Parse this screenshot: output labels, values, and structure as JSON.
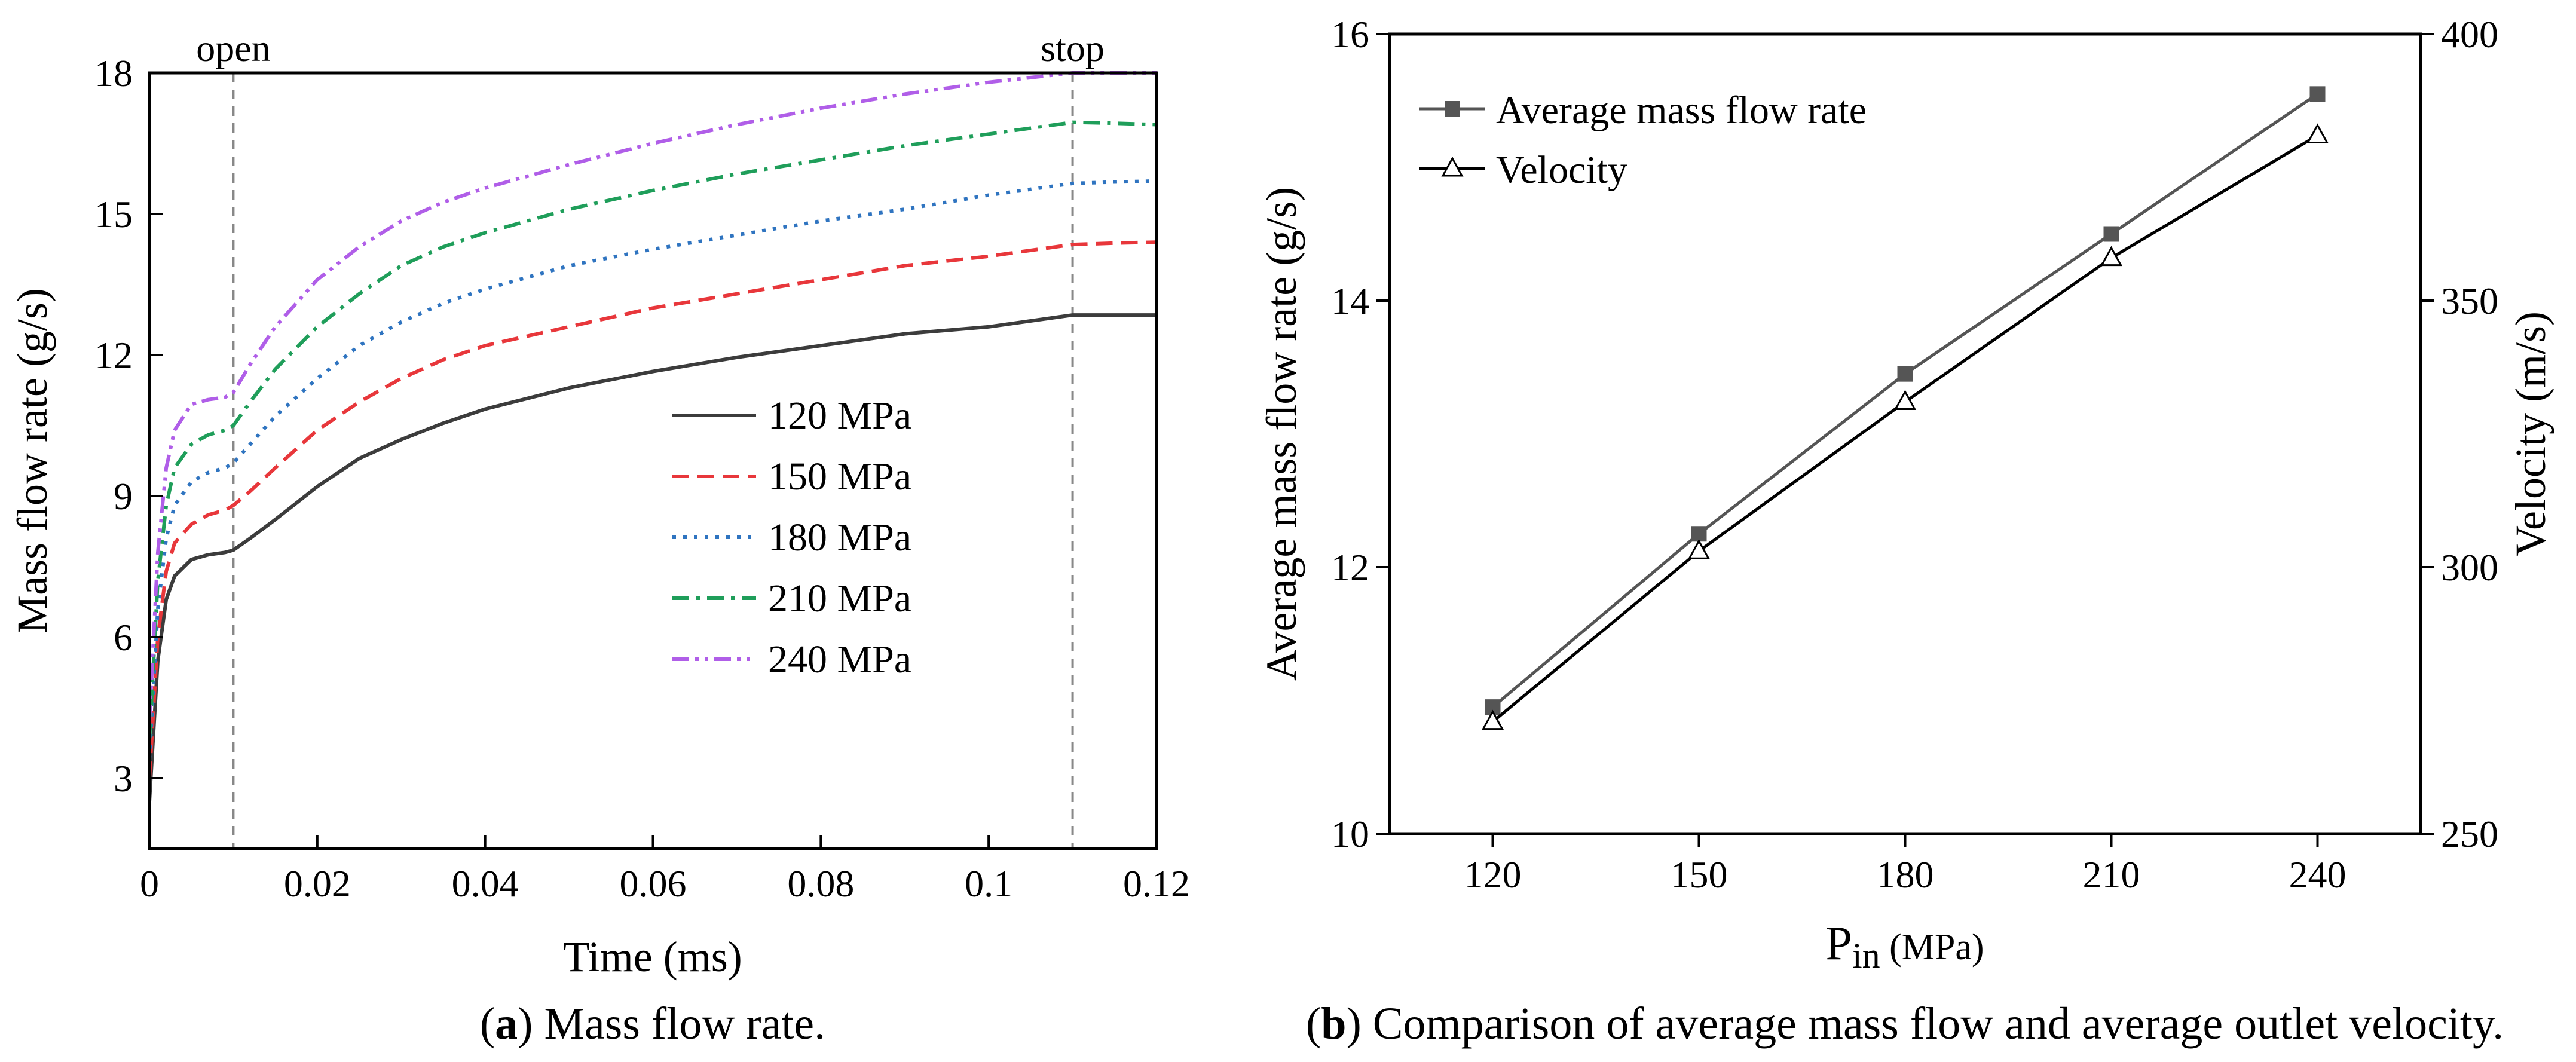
{
  "chart_data": [
    {
      "id": "a",
      "type": "line",
      "xlabel": "Time (ms)",
      "ylabel": "Mass flow rate (g/s)",
      "xlim": [
        0,
        0.12
      ],
      "ylim": [
        1.5,
        18
      ],
      "xticks": [
        0,
        0.02,
        0.04,
        0.06,
        0.08,
        0.1,
        0.12
      ],
      "xtick_labels": [
        "0",
        "0.02",
        "0.04",
        "0.06",
        "0.08",
        "0.1",
        "0.12"
      ],
      "yticks": [
        3,
        6,
        9,
        12,
        15,
        18
      ],
      "ytick_labels": [
        "3",
        "6",
        "9",
        "12",
        "15",
        "18"
      ],
      "annotations": [
        {
          "label": "open",
          "x": 0.01
        },
        {
          "label": "stop",
          "x": 0.11
        }
      ],
      "legend_position": "center-right",
      "x": [
        0,
        0.001,
        0.002,
        0.003,
        0.005,
        0.007,
        0.009,
        0.01,
        0.012,
        0.015,
        0.02,
        0.025,
        0.03,
        0.035,
        0.04,
        0.05,
        0.06,
        0.07,
        0.08,
        0.09,
        0.1,
        0.11,
        0.115,
        0.12
      ],
      "series": [
        {
          "name": "120 MPa",
          "color": "#3c3c3c",
          "dash": "solid",
          "values": [
            2.5,
            5.5,
            6.8,
            7.3,
            7.65,
            7.75,
            7.8,
            7.85,
            8.1,
            8.5,
            9.2,
            9.8,
            10.2,
            10.55,
            10.85,
            11.3,
            11.65,
            11.95,
            12.2,
            12.45,
            12.6,
            12.85,
            12.85,
            12.85
          ]
        },
        {
          "name": "150 MPa",
          "color": "#e8373b",
          "dash": "dashed",
          "values": [
            3.0,
            6.0,
            7.4,
            8.0,
            8.4,
            8.6,
            8.7,
            8.8,
            9.1,
            9.6,
            10.4,
            11.0,
            11.5,
            11.9,
            12.2,
            12.6,
            13.0,
            13.3,
            13.6,
            13.9,
            14.1,
            14.35,
            14.38,
            14.4
          ]
        },
        {
          "name": "180 MPa",
          "color": "#2f74c0",
          "dash": "dotted",
          "values": [
            3.4,
            6.6,
            8.1,
            8.8,
            9.3,
            9.5,
            9.6,
            9.7,
            10.1,
            10.7,
            11.5,
            12.2,
            12.7,
            13.1,
            13.4,
            13.9,
            14.25,
            14.55,
            14.85,
            15.1,
            15.4,
            15.65,
            15.68,
            15.7
          ]
        },
        {
          "name": "210 MPa",
          "color": "#1f9e5a",
          "dash": "dashdot",
          "values": [
            3.8,
            7.2,
            8.8,
            9.6,
            10.1,
            10.3,
            10.4,
            10.5,
            11.0,
            11.7,
            12.6,
            13.3,
            13.9,
            14.3,
            14.6,
            15.1,
            15.5,
            15.85,
            16.15,
            16.45,
            16.7,
            16.95,
            16.93,
            16.9
          ]
        },
        {
          "name": "240 MPa",
          "color": "#b05ee8",
          "dash": "dashdotdot",
          "values": [
            4.2,
            7.8,
            9.6,
            10.4,
            10.95,
            11.05,
            11.1,
            11.2,
            11.8,
            12.6,
            13.6,
            14.3,
            14.85,
            15.25,
            15.55,
            16.05,
            16.5,
            16.9,
            17.25,
            17.55,
            17.8,
            18.0,
            18.0,
            18.0
          ]
        }
      ],
      "caption_label": "a",
      "caption_text": " Mass flow rate."
    },
    {
      "id": "b",
      "type": "line",
      "xlabel_main": "P",
      "xlabel_sub": "in",
      "xlabel_unit": " (MPa)",
      "ylabel": "Average mass flow rate (g/s)",
      "y2label": "Velocity (m/s)",
      "categories": [
        120,
        150,
        180,
        210,
        240
      ],
      "xlim": [
        105,
        255
      ],
      "ylim": [
        10,
        16
      ],
      "y2lim": [
        250,
        400
      ],
      "yticks": [
        10,
        12,
        14,
        16
      ],
      "ytick_labels": [
        "10",
        "12",
        "14",
        "16"
      ],
      "y2ticks": [
        250,
        300,
        350,
        400
      ],
      "y2tick_labels": [
        "250",
        "300",
        "350",
        "400"
      ],
      "xtick_labels": [
        "120",
        "150",
        "180",
        "210",
        "240"
      ],
      "legend_position": "top-left",
      "series": [
        {
          "name": "Average mass flow rate",
          "axis": "left",
          "marker": "square",
          "color": "#555555",
          "values": [
            10.95,
            12.25,
            13.45,
            14.5,
            15.55
          ]
        },
        {
          "name": "Velocity",
          "axis": "right",
          "marker": "triangle",
          "color": "#000000",
          "values": [
            271,
            303,
            331,
            358,
            381
          ]
        }
      ],
      "caption_label": "b",
      "caption_text": " Comparison of average mass flow and average outlet velocity."
    }
  ]
}
